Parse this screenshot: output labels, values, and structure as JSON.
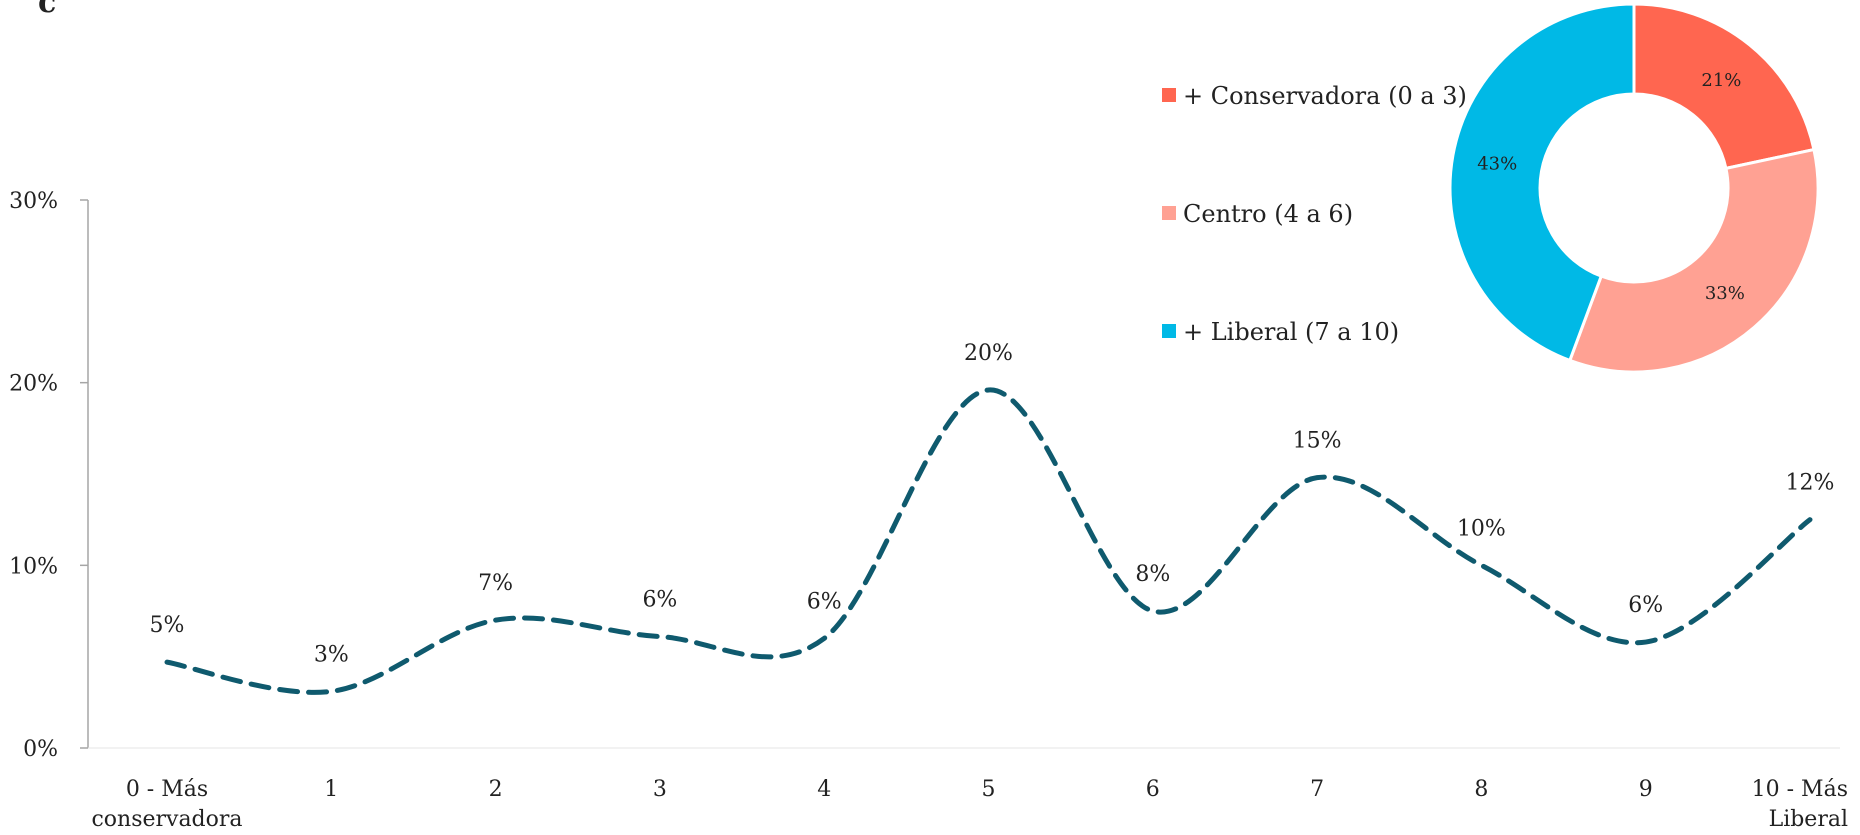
{
  "panel_letter": "c",
  "chart_data": [
    {
      "type": "line",
      "categories": [
        "0 - Más conservadora",
        "1",
        "2",
        "3",
        "4",
        "5",
        "6",
        "7",
        "8",
        "9",
        "10 - Más Liberal"
      ],
      "category_lines": [
        [
          "0 - Más",
          "conservadora"
        ],
        [
          "1"
        ],
        [
          "2"
        ],
        [
          "3"
        ],
        [
          "4"
        ],
        [
          "5"
        ],
        [
          "6"
        ],
        [
          "7"
        ],
        [
          "8"
        ],
        [
          "9"
        ],
        [
          "10 - Más",
          "Liberal"
        ]
      ],
      "values": [
        4.7,
        3.1,
        7.0,
        6.1,
        6.0,
        19.6,
        7.5,
        14.8,
        10.0,
        5.8,
        12.5
      ],
      "data_labels": [
        "5%",
        "3%",
        "7%",
        "6%",
        "6%",
        "20%",
        "8%",
        "15%",
        "10%",
        "6%",
        "12%"
      ],
      "y_ticks": [
        0,
        10,
        20,
        30
      ],
      "y_tick_labels": [
        "0%",
        "10%",
        "20%",
        "30%"
      ],
      "ylim": [
        0,
        30
      ],
      "smooth": true,
      "line_style": "dashed",
      "color": "#0f5a6e",
      "title": "",
      "xlabel": "",
      "ylabel": "",
      "grid": false
    },
    {
      "type": "pie",
      "donut": true,
      "labels": [
        "+ Conservadora (0 a 3)",
        "Centro (4 a 6)",
        "+ Liberal (7 a 10)"
      ],
      "values": [
        21,
        33,
        43
      ],
      "value_labels": [
        "21%",
        "33%",
        "43%"
      ],
      "colors": [
        "#ff6650",
        "#ffa193",
        "#00b9e6"
      ],
      "legend_position": "left"
    }
  ]
}
